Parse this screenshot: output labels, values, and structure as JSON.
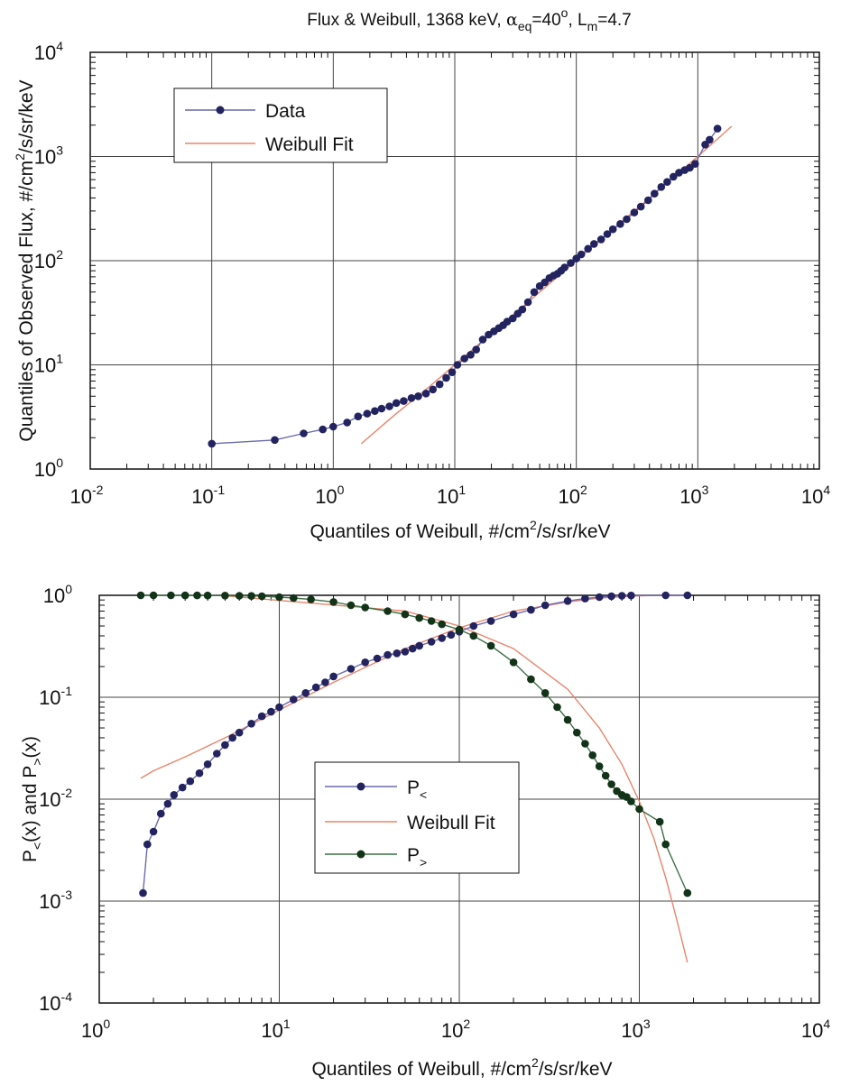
{
  "chart_data": [
    {
      "type": "line",
      "title_parts": {
        "a": "Flux & Weibull, 1368 keV, ",
        "alpha": "α",
        "eq": "eq",
        "b": "=40",
        "deg": "o",
        "c": ", L",
        "m": "m",
        "d": "=4.7"
      },
      "xlabel_parts": {
        "pre": "Quantiles of Weibull, #/cm",
        "sup": "2",
        "post": "/s/sr/keV"
      },
      "ylabel_parts": {
        "pre": "Quantiles of Observed Flux, #/cm",
        "sup": "2",
        "post": "/s/sr/keV"
      },
      "x_scale": "log",
      "y_scale": "log",
      "xlim": [
        0.01,
        10000
      ],
      "ylim": [
        1,
        10000
      ],
      "grid": true,
      "legend_position": "top-left",
      "x_ticks": [
        {
          "base": "10",
          "exp": "-2"
        },
        {
          "base": "10",
          "exp": "-1"
        },
        {
          "base": "10",
          "exp": "0"
        },
        {
          "base": "10",
          "exp": "1"
        },
        {
          "base": "10",
          "exp": "2"
        },
        {
          "base": "10",
          "exp": "3"
        },
        {
          "base": "10",
          "exp": "4"
        }
      ],
      "y_ticks": [
        {
          "base": "10",
          "exp": "0"
        },
        {
          "base": "10",
          "exp": "1"
        },
        {
          "base": "10",
          "exp": "2"
        },
        {
          "base": "10",
          "exp": "3"
        },
        {
          "base": "10",
          "exp": "4"
        }
      ],
      "series": [
        {
          "name": "Data",
          "style": "line+markers",
          "color": "#23235f",
          "line_color": "#6a6ab0",
          "x": [
            0.1,
            0.33,
            0.57,
            0.82,
            1.0,
            1.3,
            1.6,
            1.9,
            2.2,
            2.5,
            2.9,
            3.3,
            3.8,
            4.4,
            5.0,
            5.8,
            6.6,
            7.5,
            8.5,
            9.5,
            10.5,
            12,
            13.5,
            15,
            17,
            19,
            21,
            23,
            25,
            27,
            30,
            33,
            36,
            40,
            45,
            50,
            55,
            60,
            65,
            70,
            75,
            80,
            90,
            100,
            110,
            125,
            140,
            160,
            180,
            200,
            230,
            260,
            300,
            340,
            390,
            440,
            500,
            560,
            630,
            700,
            780,
            860,
            950,
            1150,
            1250,
            1450
          ],
          "y": [
            1.75,
            1.9,
            2.2,
            2.4,
            2.55,
            2.8,
            3.2,
            3.4,
            3.6,
            3.8,
            4.0,
            4.3,
            4.5,
            4.8,
            5.0,
            5.3,
            5.8,
            6.5,
            7.5,
            8.5,
            10.0,
            11.5,
            12.5,
            14.0,
            17.5,
            19.5,
            21.0,
            22.5,
            24.0,
            26.0,
            28.0,
            31.0,
            34.0,
            40.0,
            50.0,
            57.0,
            62.0,
            68.0,
            72.0,
            75.0,
            80.0,
            86.0,
            95.0,
            105,
            115,
            130,
            145,
            160,
            180,
            200,
            225,
            250,
            290,
            330,
            380,
            440,
            510,
            570,
            640,
            700,
            740,
            780,
            850,
            1300,
            1450,
            1850
          ]
        },
        {
          "name": "Weibull Fit",
          "style": "line",
          "color": "#e8846a",
          "x": [
            1.7,
            3,
            6,
            10,
            20,
            50,
            100,
            200,
            500,
            1000,
            1900
          ],
          "y": [
            1.75,
            3.1,
            6.0,
            10.0,
            20.0,
            50.0,
            100,
            200,
            500,
            1000,
            1950
          ]
        }
      ]
    },
    {
      "type": "line",
      "xlabel_parts": {
        "pre": "Quantiles of Weibull, #/cm",
        "sup": "2",
        "post": "/s/sr/keV"
      },
      "ylabel_parts": {
        "p1": "P",
        "s1": "<",
        "m": "(x) and P",
        "s2": ">",
        "e": "(x)"
      },
      "x_scale": "log",
      "y_scale": "log",
      "xlim": [
        1,
        10000
      ],
      "ylim": [
        0.0001,
        1
      ],
      "grid": true,
      "legend_position": "lower-center",
      "x_ticks": [
        {
          "base": "10",
          "exp": "0"
        },
        {
          "base": "10",
          "exp": "1"
        },
        {
          "base": "10",
          "exp": "2"
        },
        {
          "base": "10",
          "exp": "3"
        },
        {
          "base": "10",
          "exp": "4"
        }
      ],
      "y_ticks": [
        {
          "base": "10",
          "exp": "-4"
        },
        {
          "base": "10",
          "exp": "-3"
        },
        {
          "base": "10",
          "exp": "-2"
        },
        {
          "base": "10",
          "exp": "-1"
        },
        {
          "base": "10",
          "exp": "0"
        }
      ],
      "legend_entries": [
        {
          "base": "P",
          "sub": "<"
        },
        {
          "base": "Weibull Fit",
          "sub": ""
        },
        {
          "base": "P",
          "sub": ">"
        }
      ],
      "series": [
        {
          "name": "P<",
          "style": "line+markers",
          "color": "#23235f",
          "line_color": "#6a6ab0",
          "x": [
            1.75,
            1.85,
            2.0,
            2.2,
            2.4,
            2.6,
            2.9,
            3.2,
            3.6,
            4.0,
            4.5,
            5.0,
            5.5,
            6.0,
            7.0,
            8.0,
            9.0,
            10,
            12,
            14,
            16,
            18,
            20,
            25,
            30,
            35,
            40,
            45,
            50,
            55,
            60,
            70,
            80,
            90,
            100,
            120,
            150,
            200,
            250,
            300,
            400,
            500,
            600,
            700,
            800,
            900,
            1400,
            1850
          ],
          "y": [
            0.0012,
            0.0036,
            0.0048,
            0.0072,
            0.009,
            0.011,
            0.013,
            0.015,
            0.018,
            0.022,
            0.028,
            0.034,
            0.04,
            0.045,
            0.055,
            0.065,
            0.072,
            0.08,
            0.095,
            0.11,
            0.125,
            0.14,
            0.16,
            0.19,
            0.22,
            0.24,
            0.26,
            0.27,
            0.28,
            0.3,
            0.32,
            0.35,
            0.38,
            0.41,
            0.44,
            0.5,
            0.56,
            0.65,
            0.72,
            0.8,
            0.88,
            0.93,
            0.96,
            0.98,
            0.99,
            0.995,
            0.999,
            1.0
          ]
        },
        {
          "name": "Weibull Fit",
          "style": "line",
          "color": "#e8846a",
          "x": [
            1.7,
            2,
            3,
            5,
            10,
            20,
            50,
            100,
            200,
            400,
            600,
            800,
            1000,
            1300,
            1600,
            1850
          ],
          "y": [
            0.016,
            0.019,
            0.026,
            0.04,
            0.075,
            0.14,
            0.3,
            0.48,
            0.7,
            0.86,
            0.94,
            0.97,
            0.99,
            0.997,
            0.999,
            1.0
          ],
          "x2": [
            5,
            50,
            100,
            200,
            400,
            600,
            800,
            1000,
            1200,
            1400,
            1600,
            1850
          ],
          "y2": [
            0.99,
            0.7,
            0.5,
            0.3,
            0.12,
            0.05,
            0.022,
            0.0095,
            0.0042,
            0.0017,
            0.0007,
            0.00025
          ]
        },
        {
          "name": "P>",
          "style": "line+markers",
          "color": "#123318",
          "line_color": "#3f6f47",
          "x": [
            1.7,
            2,
            2.5,
            3,
            3.5,
            4,
            5,
            6,
            7,
            8,
            10,
            12,
            15,
            20,
            25,
            30,
            40,
            50,
            60,
            70,
            80,
            100,
            120,
            150,
            200,
            250,
            300,
            350,
            400,
            450,
            500,
            550,
            600,
            650,
            700,
            750,
            800,
            850,
            900,
            1000,
            1300,
            1400,
            1850
          ],
          "y": [
            1.0,
            1.0,
            0.999,
            0.998,
            0.997,
            0.996,
            0.994,
            0.99,
            0.985,
            0.98,
            0.96,
            0.94,
            0.91,
            0.86,
            0.8,
            0.76,
            0.7,
            0.65,
            0.6,
            0.56,
            0.52,
            0.46,
            0.4,
            0.32,
            0.22,
            0.15,
            0.11,
            0.08,
            0.06,
            0.045,
            0.035,
            0.027,
            0.021,
            0.017,
            0.014,
            0.012,
            0.011,
            0.0105,
            0.0095,
            0.008,
            0.006,
            0.0036,
            0.0012
          ]
        }
      ]
    }
  ]
}
